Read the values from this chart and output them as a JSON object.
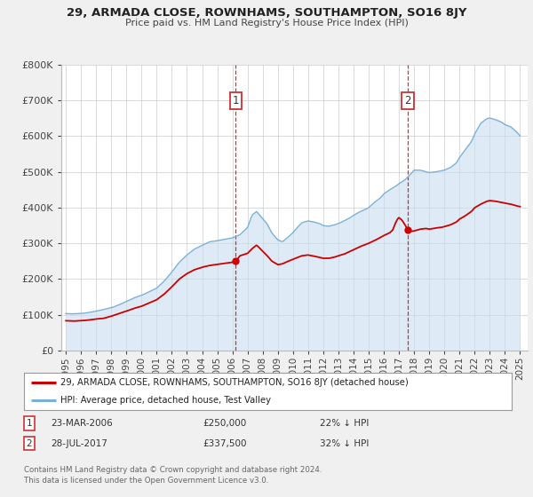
{
  "title": "29, ARMADA CLOSE, ROWNHAMS, SOUTHAMPTON, SO16 8JY",
  "subtitle": "Price paid vs. HM Land Registry's House Price Index (HPI)",
  "ylim": [
    0,
    800000
  ],
  "yticks": [
    0,
    100000,
    200000,
    300000,
    400000,
    500000,
    600000,
    700000,
    800000
  ],
  "ytick_labels": [
    "£0",
    "£100K",
    "£200K",
    "£300K",
    "£400K",
    "£500K",
    "£600K",
    "£700K",
    "£800K"
  ],
  "xlim_start": 1994.7,
  "xlim_end": 2025.5,
  "xticks": [
    1995,
    1996,
    1997,
    1998,
    1999,
    2000,
    2001,
    2002,
    2003,
    2004,
    2005,
    2006,
    2007,
    2008,
    2009,
    2010,
    2011,
    2012,
    2013,
    2014,
    2015,
    2016,
    2017,
    2018,
    2019,
    2020,
    2021,
    2022,
    2023,
    2024,
    2025
  ],
  "sale1_x": 2006.22,
  "sale1_y": 250000,
  "sale2_x": 2017.58,
  "sale2_y": 337500,
  "property_line_color": "#cc0000",
  "hpi_line_color": "#7ab0d4",
  "hpi_fill_color": "#c8dff0",
  "background_color": "#f0f0f0",
  "plot_bg_color": "#ffffff",
  "grid_color": "#cccccc",
  "legend_label1": "29, ARMADA CLOSE, ROWNHAMS, SOUTHAMPTON, SO16 8JY (detached house)",
  "legend_label2": "HPI: Average price, detached house, Test Valley",
  "annotation1_date": "23-MAR-2006",
  "annotation1_price": "£250,000",
  "annotation1_hpi": "22% ↓ HPI",
  "annotation2_date": "28-JUL-2017",
  "annotation2_price": "£337,500",
  "annotation2_hpi": "32% ↓ HPI",
  "footer": "Contains HM Land Registry data © Crown copyright and database right 2024.\nThis data is licensed under the Open Government Licence v3.0.",
  "hpi_anchors": [
    [
      1995.0,
      103000
    ],
    [
      1995.5,
      102000
    ],
    [
      1996.0,
      103000
    ],
    [
      1996.5,
      106000
    ],
    [
      1997.0,
      110000
    ],
    [
      1997.5,
      115000
    ],
    [
      1998.0,
      120000
    ],
    [
      1998.5,
      128000
    ],
    [
      1999.0,
      138000
    ],
    [
      1999.5,
      148000
    ],
    [
      2000.0,
      155000
    ],
    [
      2000.5,
      165000
    ],
    [
      2001.0,
      175000
    ],
    [
      2001.5,
      195000
    ],
    [
      2002.0,
      220000
    ],
    [
      2002.5,
      248000
    ],
    [
      2003.0,
      268000
    ],
    [
      2003.5,
      285000
    ],
    [
      2004.0,
      295000
    ],
    [
      2004.5,
      305000
    ],
    [
      2005.0,
      308000
    ],
    [
      2005.5,
      312000
    ],
    [
      2006.0,
      316000
    ],
    [
      2006.5,
      325000
    ],
    [
      2007.0,
      345000
    ],
    [
      2007.3,
      380000
    ],
    [
      2007.6,
      390000
    ],
    [
      2007.9,
      375000
    ],
    [
      2008.3,
      355000
    ],
    [
      2008.6,
      330000
    ],
    [
      2009.0,
      310000
    ],
    [
      2009.3,
      305000
    ],
    [
      2009.6,
      315000
    ],
    [
      2010.0,
      330000
    ],
    [
      2010.3,
      345000
    ],
    [
      2010.6,
      358000
    ],
    [
      2011.0,
      363000
    ],
    [
      2011.4,
      360000
    ],
    [
      2011.8,
      355000
    ],
    [
      2012.0,
      350000
    ],
    [
      2012.4,
      348000
    ],
    [
      2012.8,
      352000
    ],
    [
      2013.0,
      355000
    ],
    [
      2013.4,
      363000
    ],
    [
      2013.8,
      372000
    ],
    [
      2014.0,
      378000
    ],
    [
      2014.4,
      388000
    ],
    [
      2014.8,
      395000
    ],
    [
      2015.0,
      400000
    ],
    [
      2015.4,
      415000
    ],
    [
      2015.8,
      428000
    ],
    [
      2016.0,
      438000
    ],
    [
      2016.4,
      450000
    ],
    [
      2016.8,
      460000
    ],
    [
      2017.0,
      467000
    ],
    [
      2017.4,
      478000
    ],
    [
      2017.8,
      495000
    ],
    [
      2018.0,
      505000
    ],
    [
      2018.4,
      505000
    ],
    [
      2018.8,
      500000
    ],
    [
      2019.0,
      498000
    ],
    [
      2019.4,
      500000
    ],
    [
      2019.8,
      503000
    ],
    [
      2020.0,
      505000
    ],
    [
      2020.4,
      512000
    ],
    [
      2020.8,
      525000
    ],
    [
      2021.0,
      540000
    ],
    [
      2021.4,
      562000
    ],
    [
      2021.8,
      585000
    ],
    [
      2022.0,
      605000
    ],
    [
      2022.4,
      635000
    ],
    [
      2022.8,
      648000
    ],
    [
      2023.0,
      650000
    ],
    [
      2023.4,
      645000
    ],
    [
      2023.8,
      638000
    ],
    [
      2024.0,
      632000
    ],
    [
      2024.4,
      625000
    ],
    [
      2024.8,
      610000
    ],
    [
      2025.0,
      600000
    ]
  ],
  "prop_anchors": [
    [
      1995.0,
      83000
    ],
    [
      1995.5,
      82000
    ],
    [
      1996.0,
      83000
    ],
    [
      1996.5,
      85000
    ],
    [
      1997.0,
      88000
    ],
    [
      1997.5,
      90000
    ],
    [
      1998.0,
      96000
    ],
    [
      1998.5,
      103000
    ],
    [
      1999.0,
      110000
    ],
    [
      1999.5,
      118000
    ],
    [
      2000.0,
      124000
    ],
    [
      2000.5,
      133000
    ],
    [
      2001.0,
      142000
    ],
    [
      2001.5,
      158000
    ],
    [
      2002.0,
      178000
    ],
    [
      2002.5,
      200000
    ],
    [
      2003.0,
      215000
    ],
    [
      2003.5,
      226000
    ],
    [
      2004.0,
      233000
    ],
    [
      2004.5,
      238000
    ],
    [
      2005.0,
      241000
    ],
    [
      2005.5,
      244000
    ],
    [
      2006.0,
      247000
    ],
    [
      2006.22,
      250000
    ],
    [
      2006.5,
      265000
    ],
    [
      2007.0,
      272000
    ],
    [
      2007.3,
      285000
    ],
    [
      2007.6,
      295000
    ],
    [
      2007.9,
      282000
    ],
    [
      2008.3,
      265000
    ],
    [
      2008.6,
      250000
    ],
    [
      2009.0,
      240000
    ],
    [
      2009.3,
      242000
    ],
    [
      2009.6,
      248000
    ],
    [
      2010.0,
      255000
    ],
    [
      2010.3,
      260000
    ],
    [
      2010.6,
      265000
    ],
    [
      2011.0,
      267000
    ],
    [
      2011.4,
      264000
    ],
    [
      2011.8,
      260000
    ],
    [
      2012.0,
      258000
    ],
    [
      2012.4,
      258000
    ],
    [
      2012.8,
      262000
    ],
    [
      2013.0,
      265000
    ],
    [
      2013.4,
      270000
    ],
    [
      2013.8,
      278000
    ],
    [
      2014.0,
      282000
    ],
    [
      2014.4,
      290000
    ],
    [
      2014.8,
      297000
    ],
    [
      2015.0,
      300000
    ],
    [
      2015.4,
      308000
    ],
    [
      2015.8,
      317000
    ],
    [
      2016.0,
      322000
    ],
    [
      2016.4,
      330000
    ],
    [
      2016.6,
      338000
    ],
    [
      2016.75,
      355000
    ],
    [
      2016.9,
      368000
    ],
    [
      2017.0,
      372000
    ],
    [
      2017.2,
      365000
    ],
    [
      2017.4,
      352000
    ],
    [
      2017.58,
      337500
    ],
    [
      2017.7,
      333000
    ],
    [
      2018.0,
      335000
    ],
    [
      2018.4,
      340000
    ],
    [
      2018.8,
      342000
    ],
    [
      2019.0,
      340000
    ],
    [
      2019.4,
      343000
    ],
    [
      2019.8,
      345000
    ],
    [
      2020.0,
      347000
    ],
    [
      2020.4,
      352000
    ],
    [
      2020.8,
      360000
    ],
    [
      2021.0,
      368000
    ],
    [
      2021.4,
      378000
    ],
    [
      2021.8,
      390000
    ],
    [
      2022.0,
      400000
    ],
    [
      2022.4,
      410000
    ],
    [
      2022.8,
      418000
    ],
    [
      2023.0,
      420000
    ],
    [
      2023.4,
      418000
    ],
    [
      2023.8,
      415000
    ],
    [
      2024.0,
      413000
    ],
    [
      2024.4,
      410000
    ],
    [
      2024.8,
      405000
    ],
    [
      2025.0,
      403000
    ]
  ]
}
